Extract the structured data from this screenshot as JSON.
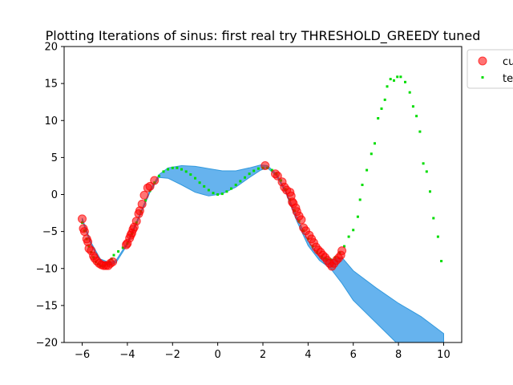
{
  "chart_data": {
    "type": "scatter",
    "title": "Plotting Iterations of sinus: first real try THRESHOLD_GREEDY tuned",
    "xlabel": "",
    "ylabel": "",
    "xlim": [
      -6.8,
      10.8
    ],
    "ylim": [
      -20,
      20
    ],
    "xticks": [
      -6,
      -4,
      -2,
      0,
      2,
      4,
      6,
      8,
      10
    ],
    "yticks": [
      -20,
      -15,
      -10,
      -5,
      0,
      5,
      10,
      15,
      20
    ],
    "legend": {
      "position": "top-right",
      "entries": [
        "cu",
        "te"
      ]
    },
    "colors": {
      "current": "#ff0000",
      "test": "#00dd00",
      "band": "#66b3ee",
      "band_edge": "#3399dd"
    },
    "band_upper": [
      [
        -6.0,
        -3.2
      ],
      [
        -5.6,
        -6.5
      ],
      [
        -5.2,
        -8.7
      ],
      [
        -4.8,
        -9.2
      ],
      [
        -4.5,
        -8.9
      ],
      [
        -4.0,
        -6.5
      ],
      [
        -3.5,
        -3.0
      ],
      [
        -3.0,
        0.6
      ],
      [
        -2.6,
        2.7
      ],
      [
        -2.2,
        3.6
      ],
      [
        -1.6,
        3.9
      ],
      [
        -1.0,
        3.8
      ],
      [
        -0.4,
        3.5
      ],
      [
        0.2,
        3.2
      ],
      [
        0.8,
        3.2
      ],
      [
        1.4,
        3.6
      ],
      [
        1.9,
        4.0
      ],
      [
        2.2,
        3.9
      ],
      [
        2.6,
        2.8
      ],
      [
        3.0,
        0.6
      ],
      [
        3.5,
        -3.0
      ],
      [
        4.0,
        -6.3
      ],
      [
        4.5,
        -8.3
      ],
      [
        5.0,
        -8.8
      ],
      [
        5.5,
        -8.5
      ],
      [
        6.0,
        -10.3
      ],
      [
        7.0,
        -12.6
      ],
      [
        8.0,
        -14.7
      ],
      [
        9.0,
        -16.5
      ],
      [
        10.0,
        -18.8
      ]
    ],
    "band_lower": [
      [
        10.0,
        -22.0
      ],
      [
        9.0,
        -21.5
      ],
      [
        8.0,
        -20.3
      ],
      [
        7.0,
        -17.3
      ],
      [
        6.0,
        -14.3
      ],
      [
        5.5,
        -12.0
      ],
      [
        5.0,
        -10.0
      ],
      [
        4.5,
        -8.9
      ],
      [
        4.0,
        -6.9
      ],
      [
        3.5,
        -3.6
      ],
      [
        3.0,
        0.3
      ],
      [
        2.6,
        2.5
      ],
      [
        2.2,
        3.6
      ],
      [
        1.9,
        3.3
      ],
      [
        1.4,
        2.3
      ],
      [
        0.8,
        1.0
      ],
      [
        0.2,
        0.1
      ],
      [
        -0.4,
        -0.2
      ],
      [
        -1.0,
        0.3
      ],
      [
        -1.6,
        1.3
      ],
      [
        -2.2,
        2.2
      ],
      [
        -2.6,
        2.3
      ],
      [
        -3.0,
        0.3
      ],
      [
        -3.5,
        -3.3
      ],
      [
        -4.0,
        -6.8
      ],
      [
        -4.5,
        -9.2
      ],
      [
        -4.8,
        -9.6
      ],
      [
        -5.2,
        -9.0
      ],
      [
        -5.6,
        -6.9
      ],
      [
        -6.0,
        -3.5
      ]
    ],
    "series": [
      {
        "name": "cu",
        "marker": "circle",
        "points": [
          [
            -6.0,
            -3.3
          ],
          [
            -5.95,
            -4.6
          ],
          [
            -5.9,
            -5.0
          ],
          [
            -5.8,
            -6.0
          ],
          [
            -5.75,
            -6.4
          ],
          [
            -5.7,
            -7.3
          ],
          [
            -5.6,
            -7.6
          ],
          [
            -5.5,
            -8.3
          ],
          [
            -5.45,
            -8.6
          ],
          [
            -5.35,
            -9.0
          ],
          [
            -5.25,
            -9.3
          ],
          [
            -5.15,
            -9.5
          ],
          [
            -5.05,
            -9.6
          ],
          [
            -4.95,
            -9.6
          ],
          [
            -4.85,
            -9.6
          ],
          [
            -4.75,
            -9.3
          ],
          [
            -4.65,
            -9.1
          ],
          [
            -4.05,
            -6.8
          ],
          [
            -4.0,
            -6.6
          ],
          [
            -3.9,
            -5.9
          ],
          [
            -3.85,
            -5.5
          ],
          [
            -3.8,
            -5.2
          ],
          [
            -3.75,
            -4.7
          ],
          [
            -3.7,
            -4.4
          ],
          [
            -3.6,
            -3.6
          ],
          [
            -3.5,
            -2.6
          ],
          [
            -3.45,
            -2.2
          ],
          [
            -3.35,
            -1.3
          ],
          [
            -3.25,
            -0.1
          ],
          [
            -3.1,
            0.9
          ],
          [
            -3.0,
            1.1
          ],
          [
            -2.8,
            1.9
          ],
          [
            2.1,
            3.9
          ],
          [
            2.55,
            2.8
          ],
          [
            2.65,
            2.5
          ],
          [
            2.85,
            1.7
          ],
          [
            2.95,
            1.0
          ],
          [
            3.05,
            0.6
          ],
          [
            3.2,
            0.3
          ],
          [
            3.25,
            -0.2
          ],
          [
            3.3,
            -1.0
          ],
          [
            3.35,
            -1.2
          ],
          [
            3.45,
            -1.8
          ],
          [
            3.5,
            -2.3
          ],
          [
            3.6,
            -2.9
          ],
          [
            3.7,
            -3.4
          ],
          [
            3.8,
            -4.5
          ],
          [
            3.9,
            -4.9
          ],
          [
            4.05,
            -5.5
          ],
          [
            4.15,
            -6.0
          ],
          [
            4.25,
            -6.5
          ],
          [
            4.35,
            -7.1
          ],
          [
            4.45,
            -7.5
          ],
          [
            4.55,
            -7.8
          ],
          [
            4.65,
            -8.2
          ],
          [
            4.75,
            -8.5
          ],
          [
            4.85,
            -8.9
          ],
          [
            4.95,
            -9.3
          ],
          [
            5.05,
            -9.7
          ],
          [
            5.15,
            -9.3
          ],
          [
            5.25,
            -8.9
          ],
          [
            5.35,
            -8.6
          ],
          [
            5.45,
            -8.2
          ],
          [
            5.5,
            -7.6
          ]
        ]
      },
      {
        "name": "te",
        "marker": "dot",
        "points": [
          [
            -6.0,
            -3.8
          ],
          [
            -5.9,
            -4.9
          ],
          [
            -5.8,
            -6.0
          ],
          [
            -5.7,
            -7.0
          ],
          [
            -5.6,
            -7.8
          ],
          [
            -5.5,
            -8.5
          ],
          [
            -5.4,
            -9.1
          ],
          [
            -5.3,
            -9.4
          ],
          [
            -5.2,
            -9.6
          ],
          [
            -5.1,
            -9.7
          ],
          [
            -5.0,
            -9.6
          ],
          [
            -4.9,
            -9.4
          ],
          [
            -4.8,
            -9.1
          ],
          [
            -4.7,
            -8.7
          ],
          [
            -4.6,
            -8.2
          ],
          [
            -4.4,
            -7.7
          ],
          [
            -4.2,
            -7.2
          ],
          [
            -4.0,
            -6.6
          ],
          [
            -3.8,
            -5.3
          ],
          [
            -3.6,
            -3.8
          ],
          [
            -3.4,
            -2.3
          ],
          [
            -3.2,
            -0.8
          ],
          [
            -3.0,
            0.5
          ],
          [
            -2.8,
            1.6
          ],
          [
            -2.6,
            2.5
          ],
          [
            -2.4,
            3.1
          ],
          [
            -2.2,
            3.4
          ],
          [
            -2.0,
            3.6
          ],
          [
            -1.8,
            3.6
          ],
          [
            -1.6,
            3.4
          ],
          [
            -1.4,
            3.1
          ],
          [
            -1.2,
            2.7
          ],
          [
            -1.0,
            2.2
          ],
          [
            -0.8,
            1.6
          ],
          [
            -0.6,
            1.1
          ],
          [
            -0.4,
            0.6
          ],
          [
            -0.2,
            0.2
          ],
          [
            0.0,
            0.0
          ],
          [
            0.2,
            0.1
          ],
          [
            0.4,
            0.4
          ],
          [
            0.6,
            0.8
          ],
          [
            0.8,
            1.3
          ],
          [
            1.0,
            1.8
          ],
          [
            1.2,
            2.3
          ],
          [
            1.4,
            2.8
          ],
          [
            1.6,
            3.2
          ],
          [
            1.8,
            3.5
          ],
          [
            2.0,
            3.6
          ],
          [
            2.2,
            3.6
          ],
          [
            2.4,
            3.3
          ],
          [
            2.6,
            2.8
          ],
          [
            2.8,
            1.9
          ],
          [
            3.0,
            0.7
          ],
          [
            3.2,
            -0.7
          ],
          [
            3.4,
            -2.2
          ],
          [
            3.6,
            -3.6
          ],
          [
            3.8,
            -4.9
          ],
          [
            4.0,
            -6.0
          ],
          [
            4.2,
            -7.0
          ],
          [
            4.4,
            -7.8
          ],
          [
            4.6,
            -8.4
          ],
          [
            4.8,
            -8.7
          ],
          [
            5.0,
            -8.8
          ],
          [
            5.2,
            -8.5
          ],
          [
            5.4,
            -7.9
          ],
          [
            5.6,
            -7.0
          ],
          [
            5.8,
            -5.7
          ],
          [
            6.0,
            -4.8
          ],
          [
            6.2,
            -3.0
          ],
          [
            6.3,
            -0.7
          ],
          [
            6.4,
            1.3
          ],
          [
            6.6,
            3.3
          ],
          [
            6.8,
            5.5
          ],
          [
            6.95,
            6.9
          ],
          [
            7.1,
            10.3
          ],
          [
            7.25,
            11.6
          ],
          [
            7.4,
            12.8
          ],
          [
            7.5,
            14.6
          ],
          [
            7.65,
            15.6
          ],
          [
            7.8,
            15.4
          ],
          [
            7.95,
            15.9
          ],
          [
            8.1,
            15.9
          ],
          [
            8.3,
            15.2
          ],
          [
            8.5,
            13.8
          ],
          [
            8.65,
            11.9
          ],
          [
            8.8,
            10.6
          ],
          [
            8.95,
            8.5
          ],
          [
            9.1,
            4.2
          ],
          [
            9.25,
            3.1
          ],
          [
            9.4,
            0.4
          ],
          [
            9.55,
            -3.2
          ],
          [
            9.75,
            -5.7
          ],
          [
            9.9,
            -9.0
          ]
        ]
      }
    ]
  }
}
